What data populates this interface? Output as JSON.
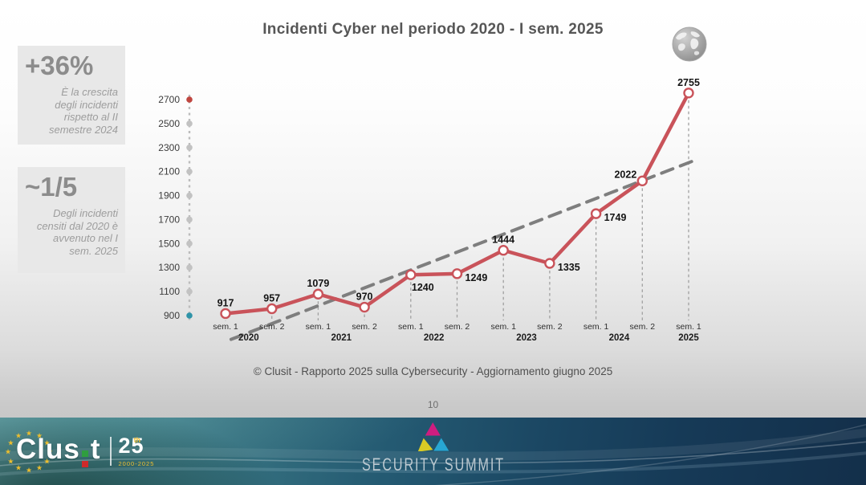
{
  "slide": {
    "title": "Incidenti Cyber nel periodo 2020 - I sem. 2025",
    "footer": "© Clusit - Rapporto 2025 sulla Cybersecurity - Aggiornamento giugno 2025",
    "page_number": "10"
  },
  "stats": [
    {
      "value": "+36%",
      "description": "È la crescita\ndegli incidenti\nrispetto al II\nsemestre 2024"
    },
    {
      "value": "~1/5",
      "description": "Degli incidenti\ncensiti dal 2020 è\navvenuto nel I\nsem. 2025"
    }
  ],
  "chart_data": {
    "type": "line",
    "title": "Incidenti Cyber nel periodo 2020 - I sem. 2025",
    "categories": [
      "sem. 1",
      "sem. 2",
      "sem. 1",
      "sem. 2",
      "sem. 1",
      "sem. 2",
      "sem. 1",
      "sem. 2",
      "sem. 1",
      "sem. 2",
      "sem. 1"
    ],
    "year_groups": [
      {
        "label": "2020",
        "from": 0,
        "to": 1
      },
      {
        "label": "2021",
        "from": 2,
        "to": 3
      },
      {
        "label": "2022",
        "from": 4,
        "to": 5
      },
      {
        "label": "2023",
        "from": 6,
        "to": 7
      },
      {
        "label": "2024",
        "from": 8,
        "to": 9
      },
      {
        "label": "2025",
        "from": 10,
        "to": 10
      }
    ],
    "values": [
      917,
      957,
      1079,
      970,
      1240,
      1249,
      1444,
      1335,
      1749,
      2022,
      2755
    ],
    "y_ticks": [
      900,
      1100,
      1300,
      1500,
      1700,
      1900,
      2100,
      2300,
      2500,
      2700
    ],
    "ylim": [
      900,
      2700
    ],
    "grid": false,
    "legend": false,
    "line_color": "#c9535a",
    "marker_fill": "#ffffff",
    "trendline": {
      "shown": true,
      "style": "dashed",
      "color": "#7e7e7e"
    },
    "label_placement": [
      "above",
      "above",
      "above",
      "above",
      "below-right",
      "right",
      "above",
      "right",
      "right",
      "above-left",
      "above"
    ],
    "axis_dot_colors": {
      "top": "#c0453f",
      "middle": "#c2c2c2",
      "bottom": "#2e93a8"
    }
  },
  "footer_bar": {
    "clusit_prefix": "Clus",
    "clusit_suffix": "t",
    "anniversary": "25",
    "anniversary_sup": "th",
    "anniversary_years": "2000-2025",
    "security_summit": "SECURITY SUMMIT"
  },
  "icons": {
    "globe_icon": "grayscale world globe",
    "stars_circle": "★",
    "summit_triangle": "tri-color triangle (magenta, yellow, cyan)"
  },
  "colors": {
    "line": "#c9535a",
    "trend": "#7e7e7e",
    "stat_box_bg": "#e8e8e8",
    "band_teal": "#4a8a92",
    "band_navy": "#132f4a",
    "star_gold": "#edbe2e",
    "triangle_magenta": "#ce1d80",
    "triangle_yellow": "#d9cb25",
    "triangle_cyan": "#27a7d3"
  }
}
